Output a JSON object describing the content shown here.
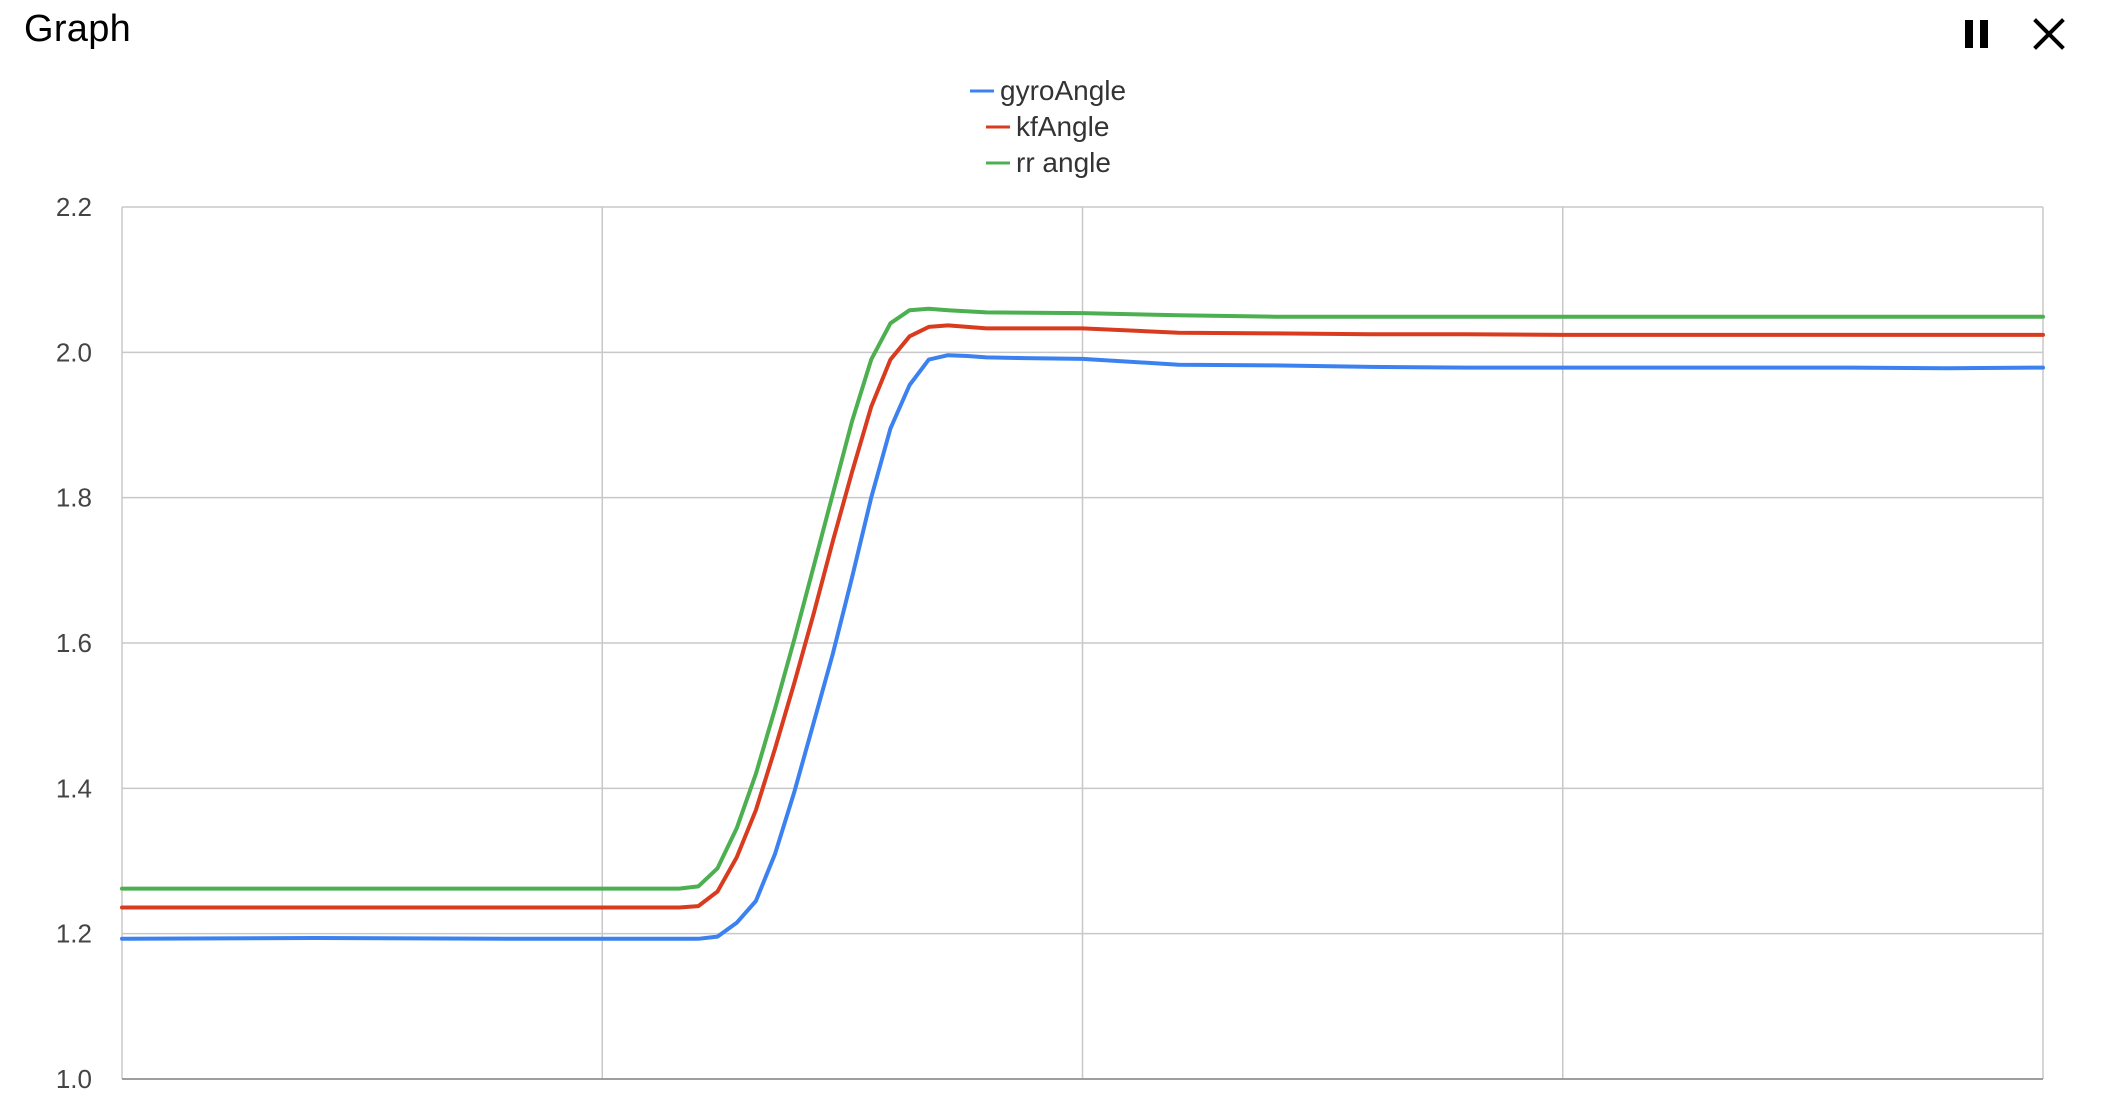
{
  "window": {
    "title": "Graph",
    "pause_icon": "pause-icon",
    "close_icon": "close-icon"
  },
  "chart_data": {
    "type": "line",
    "title": "",
    "xlabel": "",
    "ylabel": "",
    "ylim": [
      1.0,
      2.2
    ],
    "yticks": [
      "1.0",
      "1.2",
      "1.4",
      "1.6",
      "1.8",
      "2.0",
      "2.2"
    ],
    "x_gridlines": 4,
    "xlim": [
      0,
      100
    ],
    "grid": true,
    "legend_position": "top-center",
    "series": [
      {
        "name": "gyroAngle",
        "color": "#3b82f0",
        "x": [
          0,
          10,
          20,
          25,
          30,
          31,
          32,
          33,
          34,
          35,
          36,
          37,
          38,
          39,
          40,
          41,
          42,
          43,
          44,
          45,
          47,
          50,
          55,
          60,
          65,
          70,
          75,
          80,
          85,
          90,
          95,
          100
        ],
        "y": [
          1.193,
          1.194,
          1.193,
          1.193,
          1.193,
          1.196,
          1.215,
          1.245,
          1.31,
          1.395,
          1.49,
          1.585,
          1.69,
          1.8,
          1.895,
          1.955,
          1.99,
          1.996,
          1.995,
          1.993,
          1.992,
          1.991,
          1.983,
          1.982,
          1.98,
          1.979,
          1.979,
          1.979,
          1.979,
          1.979,
          1.978,
          1.979
        ]
      },
      {
        "name": "kfAngle",
        "color": "#d93b1e",
        "x": [
          0,
          10,
          20,
          25,
          29,
          30,
          31,
          32,
          33,
          34,
          35,
          36,
          37,
          38,
          39,
          40,
          41,
          42,
          43,
          45,
          50,
          55,
          60,
          65,
          70,
          75,
          80,
          85,
          90,
          95,
          100
        ],
        "y": [
          1.236,
          1.236,
          1.236,
          1.236,
          1.236,
          1.238,
          1.258,
          1.305,
          1.37,
          1.455,
          1.545,
          1.64,
          1.74,
          1.835,
          1.925,
          1.99,
          2.022,
          2.035,
          2.037,
          2.033,
          2.033,
          2.027,
          2.026,
          2.025,
          2.025,
          2.024,
          2.024,
          2.024,
          2.024,
          2.024,
          2.024
        ]
      },
      {
        "name": "rr angle",
        "color": "#4caf50",
        "x": [
          0,
          10,
          20,
          25,
          29,
          30,
          31,
          32,
          33,
          34,
          35,
          36,
          37,
          38,
          39,
          40,
          41,
          42,
          43,
          45,
          50,
          55,
          60,
          65,
          70,
          75,
          80,
          85,
          90,
          95,
          100
        ],
        "y": [
          1.262,
          1.262,
          1.262,
          1.262,
          1.262,
          1.265,
          1.29,
          1.345,
          1.42,
          1.51,
          1.605,
          1.705,
          1.805,
          1.905,
          1.99,
          2.04,
          2.058,
          2.06,
          2.058,
          2.055,
          2.054,
          2.051,
          2.049,
          2.049,
          2.049,
          2.049,
          2.049,
          2.049,
          2.049,
          2.049,
          2.049
        ]
      }
    ]
  }
}
